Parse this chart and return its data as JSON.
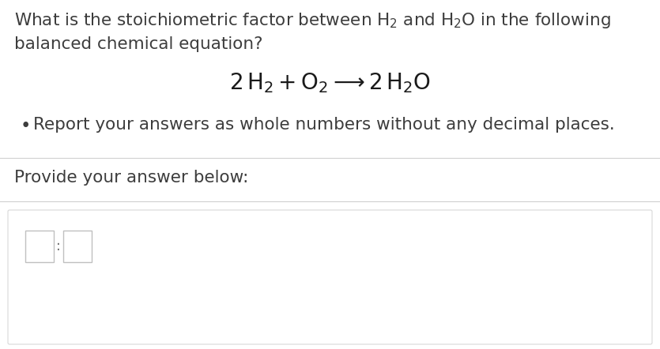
{
  "background_color": "#ffffff",
  "question_line2": "balanced chemical equation?",
  "bullet_text": "Report your answers as whole numbers without any decimal places.",
  "provide_text": "Provide your answer below:",
  "text_color": "#3d3d3d",
  "equation_color": "#1a1a1a",
  "line_color": "#d0d0d0",
  "box_border_color": "#c0c0c0",
  "box_fill_color": "#ffffff",
  "answer_bg_color": "#ffffff",
  "answer_container_border": "#d8d8d8",
  "font_size_main": 15.5,
  "font_size_equation": 20,
  "font_size_bullet": 15.5
}
